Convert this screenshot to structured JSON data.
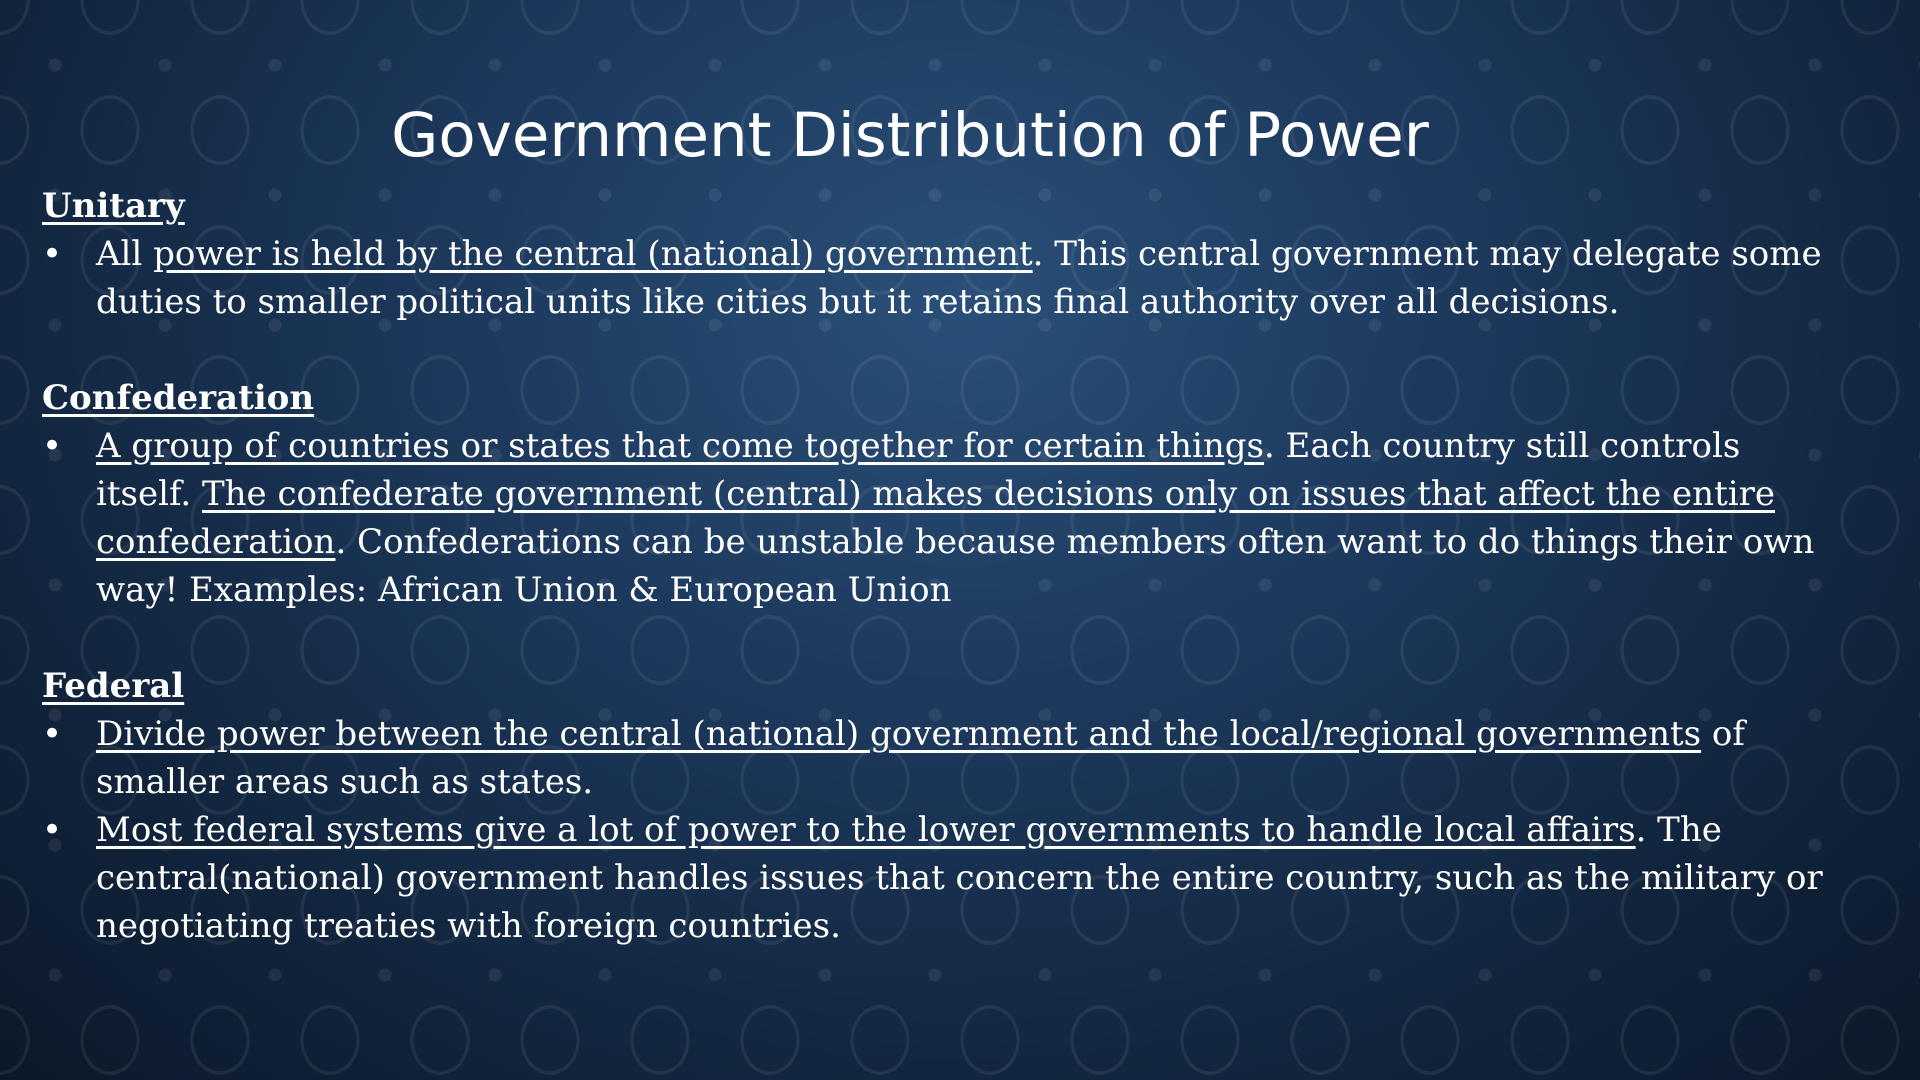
{
  "slide": {
    "title": "Government Distribution of Power",
    "sections": [
      {
        "heading": "Unitary",
        "bullets": [
          [
            {
              "text": "All ",
              "underline": false
            },
            {
              "text": "power is held by the central (national) government",
              "underline": true
            },
            {
              "text": ". This central government may delegate some duties to smaller political units like cities but it retains final authority over all decisions.",
              "underline": false
            }
          ]
        ]
      },
      {
        "heading": "Confederation",
        "bullets": [
          [
            {
              "text": "A group of countries or states that come together for certain things",
              "underline": true
            },
            {
              "text": ". Each country still controls itself. ",
              "underline": false
            },
            {
              "text": "The confederate government (central) makes decisions only on issues that affect the entire confederation",
              "underline": true
            },
            {
              "text": ". Confederations can be unstable because members often want to do things their own way! Examples: African Union & European Union",
              "underline": false
            }
          ]
        ]
      },
      {
        "heading": "Federal",
        "bullets": [
          [
            {
              "text": "Divide power between the central (national) government and the local/regional governments",
              "underline": true
            },
            {
              "text": " of smaller areas such as states.",
              "underline": false
            }
          ],
          [
            {
              "text": "Most federal systems give a lot of power to the lower governments to handle local affairs",
              "underline": true
            },
            {
              "text": ". The central(national) government handles issues that concern the entire country, such as the military or negotiating treaties with foreign countries.",
              "underline": false
            }
          ]
        ]
      }
    ]
  }
}
